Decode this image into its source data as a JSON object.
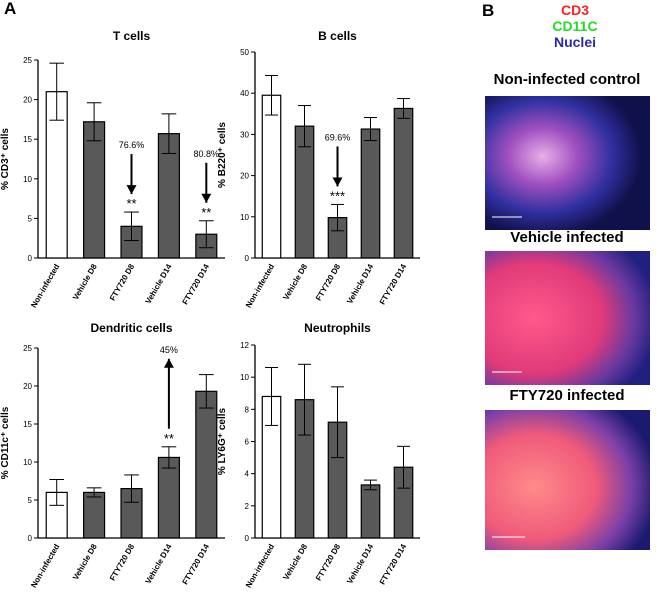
{
  "panel_labels": [
    "A",
    "B"
  ],
  "chart_data": [
    {
      "type": "bar",
      "title": "T cells",
      "ylabel": "% CD3⁺ cells",
      "categories": [
        "Non-infected",
        "Vehicle D8",
        "FTY720  D8",
        "Vehicle D14",
        "FTY720  D14"
      ],
      "values": [
        21,
        17.2,
        4,
        15.7,
        3
      ],
      "errors": [
        3.6,
        2.4,
        1.8,
        2.5,
        1.7
      ],
      "colors": [
        "#ffffff",
        "#595959",
        "#595959",
        "#595959",
        "#595959"
      ],
      "ylim": [
        0,
        25
      ],
      "yticks": [
        0,
        5,
        10,
        15,
        20,
        25
      ],
      "annotations": [
        {
          "category": "FTY720  D8",
          "label": "76.6%",
          "significance": "**",
          "arrow": "down"
        },
        {
          "category": "FTY720  D14",
          "label": "80.8%",
          "significance": "**",
          "arrow": "down"
        }
      ]
    },
    {
      "type": "bar",
      "title": "B cells",
      "ylabel": "% B220⁺ cells",
      "categories": [
        "Non-infected",
        "Vehicle D8",
        "FTY720 D8",
        "Vehicle D14",
        "FTY720 D14"
      ],
      "values": [
        39.5,
        32,
        9.8,
        31.3,
        36.3
      ],
      "errors": [
        4.8,
        5,
        3.2,
        2.8,
        2.4
      ],
      "colors": [
        "#ffffff",
        "#595959",
        "#595959",
        "#595959",
        "#595959"
      ],
      "ylim": [
        0,
        50
      ],
      "yticks": [
        0,
        10,
        20,
        30,
        40,
        50
      ],
      "annotations": [
        {
          "category": "FTY720 D8",
          "label": "69.6%",
          "significance": "***",
          "arrow": "down"
        }
      ]
    },
    {
      "type": "bar",
      "title": "Dendritic cells",
      "ylabel": "% CD11c⁺ cells",
      "categories": [
        "Non-infected",
        "Vehicle D8",
        "FTY720  D8",
        "Vehicle D14",
        "FTY720 D14"
      ],
      "values": [
        6,
        6,
        6.5,
        10.6,
        19.3
      ],
      "errors": [
        1.7,
        0.6,
        1.8,
        1.4,
        2.2
      ],
      "colors": [
        "#ffffff",
        "#595959",
        "#595959",
        "#595959",
        "#595959"
      ],
      "ylim": [
        0,
        25
      ],
      "yticks": [
        0,
        5,
        10,
        15,
        20,
        25
      ],
      "annotations": [
        {
          "category": "Vehicle D14",
          "label": "45%",
          "significance": "**",
          "arrow": "up"
        }
      ]
    },
    {
      "type": "bar",
      "title": "Neutrophils",
      "ylabel": "% LY6G⁺ cells",
      "categories": [
        "Non-infected",
        "Vehicle D8",
        "FTY720 D8",
        "Vehicle D14",
        "FTY720 D14"
      ],
      "values": [
        8.8,
        8.6,
        7.2,
        3.3,
        4.4
      ],
      "errors": [
        1.8,
        2.2,
        2.2,
        0.3,
        1.3
      ],
      "colors": [
        "#ffffff",
        "#595959",
        "#595959",
        "#595959",
        "#595959"
      ],
      "ylim": [
        0,
        12
      ],
      "yticks": [
        0,
        2,
        4,
        6,
        8,
        10,
        12
      ],
      "annotations": []
    }
  ],
  "micrographs": {
    "legend": [
      {
        "label": "CD3",
        "color": "#ff2020"
      },
      {
        "label": "CD11C",
        "color": "#22dd22"
      },
      {
        "label": "Nuclei",
        "color": "#2a2aa8"
      }
    ],
    "titles": [
      "Non-infected control",
      "Vehicle infected",
      "FTY720 infected"
    ]
  }
}
